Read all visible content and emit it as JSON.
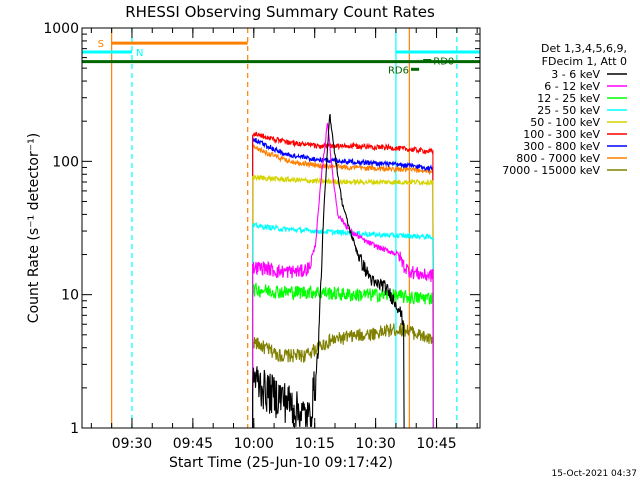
{
  "chart_data": {
    "type": "line",
    "title": "RHESSI Observing Summary Count Rates",
    "xlabel": "Start Time (25-Jun-10 09:17:42)",
    "ylabel": "Count Rate (s⁻¹ detector⁻¹)",
    "yscale": "log",
    "ylim": [
      1,
      1000
    ],
    "xlim_minutes": [
      0,
      98
    ],
    "x_units": "minutes after 09:17:42",
    "grid": false,
    "ytick_labels": [
      "1",
      "10",
      "100",
      "1000"
    ],
    "ytick_values": [
      1,
      10,
      100,
      1000
    ],
    "xtick_labels": [
      "09:30",
      "09:45",
      "10:00",
      "10:15",
      "10:30",
      "10:45"
    ],
    "xtick_minutes": [
      12.3,
      27.3,
      42.3,
      57.3,
      72.3,
      87.3
    ],
    "footer": "15-Oct-2021 04:37",
    "legend": {
      "placement": "top-right",
      "header": [
        "Det 1,3,4,5,6,9,",
        "FDecim 1, Att 0"
      ],
      "entries": [
        {
          "label": "3 - 6 keV",
          "color": "#000000"
        },
        {
          "label": "6 - 12 keV",
          "color": "#ff00ff"
        },
        {
          "label": "12 - 25 keV",
          "color": "#00ff00"
        },
        {
          "label": "25 - 50 keV",
          "color": "#00ffff"
        },
        {
          "label": "50 - 100 keV",
          "color": "#d4d400"
        },
        {
          "label": "100 - 300 keV",
          "color": "#ff0000"
        },
        {
          "label": "300 - 800 keV",
          "color": "#0000ff"
        },
        {
          "label": "800 - 7000 keV",
          "color": "#ff8000"
        },
        {
          "label": "7000 - 15000 keV",
          "color": "#808000"
        }
      ]
    },
    "series": [
      {
        "name": "3 - 6 keV",
        "color": "#000000",
        "t": [
          42,
          45,
          48,
          51,
          54,
          56,
          58,
          59.5,
          61,
          62.5,
          64,
          66,
          68,
          70,
          72,
          74,
          76,
          78,
          79.3
        ],
        "v": [
          2.5,
          2,
          1.8,
          1.6,
          1.3,
          1.2,
          3,
          40,
          230,
          100,
          50,
          30,
          20,
          15,
          12,
          12,
          10,
          8,
          6
        ]
      },
      {
        "name": "6 - 12 keV",
        "color": "#ff00ff",
        "t": [
          42,
          45,
          48,
          51,
          54,
          56,
          57.5,
          59,
          60.5,
          61.5,
          63,
          66,
          70,
          74,
          78,
          79.5,
          81,
          84,
          86.5
        ],
        "v": [
          16,
          16,
          15,
          15,
          15,
          16,
          24,
          80,
          200,
          90,
          40,
          30,
          25,
          22,
          20,
          16,
          15,
          14,
          14
        ]
      },
      {
        "name": "12 - 25 keV",
        "color": "#00ff00",
        "t": [
          42,
          50,
          58,
          66,
          74,
          82,
          86.5
        ],
        "v": [
          11,
          10.5,
          10.5,
          10,
          10,
          9.5,
          9.5
        ]
      },
      {
        "name": "25 - 50 keV",
        "color": "#00ffff",
        "t": [
          42,
          50,
          58,
          66,
          74,
          82,
          86.5
        ],
        "v": [
          33,
          31,
          30,
          29,
          28,
          27.5,
          27
        ]
      },
      {
        "name": "50 - 100 keV",
        "color": "#d4d400",
        "t": [
          42,
          50,
          58,
          66,
          74,
          82,
          86.5
        ],
        "v": [
          76,
          73,
          71,
          70,
          70,
          70,
          70
        ]
      },
      {
        "name": "100 - 300 keV",
        "color": "#ff0000",
        "t": [
          42,
          50,
          58,
          66,
          74,
          82,
          86.5
        ],
        "v": [
          162,
          140,
          130,
          130,
          128,
          122,
          118
        ]
      },
      {
        "name": "300 - 800 keV",
        "color": "#0000ff",
        "t": [
          42,
          50,
          58,
          66,
          74,
          82,
          86.5
        ],
        "v": [
          148,
          113,
          103,
          100,
          96,
          92,
          88
        ]
      },
      {
        "name": "800 - 7000 keV",
        "color": "#ff8000",
        "t": [
          42,
          50,
          58,
          66,
          74,
          82,
          86.5
        ],
        "v": [
          128,
          102,
          93,
          90,
          88,
          86,
          84
        ]
      },
      {
        "name": "7000 - 15000 keV",
        "color": "#808000",
        "t": [
          42,
          45,
          49,
          52,
          55,
          58,
          61,
          65,
          69,
          73,
          77,
          80,
          83,
          86.5
        ],
        "v": [
          4.5,
          4,
          3.5,
          3.5,
          3.5,
          4,
          4.5,
          4.8,
          5,
          5.2,
          5.5,
          5.5,
          5,
          4.5
        ]
      }
    ],
    "annotations": {
      "vertical_lines": [
        {
          "t": 7.3,
          "color": "#ff8000",
          "style": "solid"
        },
        {
          "t": 12.3,
          "color": "#00ffff",
          "style": "dashed"
        },
        {
          "t": 40.8,
          "color": "#ff8000",
          "style": "dashed"
        },
        {
          "t": 77.3,
          "color": "#00ffff",
          "style": "solid"
        },
        {
          "t": 80.6,
          "color": "#ff8000",
          "style": "solid"
        },
        {
          "t": 92.3,
          "color": "#00ffff",
          "style": "dashed"
        }
      ],
      "intervals": [
        {
          "label": "S",
          "color": "#ff8000",
          "t0": 7.3,
          "t1": 40.8,
          "level": 770
        },
        {
          "label": "N",
          "color": "#00ffff",
          "t0": 0,
          "t1": 12.3,
          "level": 660
        },
        {
          "label": "",
          "color": "#00ffff",
          "t0": 77.3,
          "t1": 98,
          "level": 660
        },
        {
          "label": "",
          "color": "#006600",
          "t0": 0,
          "t1": 98,
          "level": 560
        },
        {
          "label": "RD6",
          "color": "#006600",
          "t0": 81,
          "t1": 83,
          "level": 490
        },
        {
          "label": "RD0",
          "color": "#006600",
          "t0": 84,
          "t1": 86,
          "level": 570
        }
      ]
    }
  }
}
